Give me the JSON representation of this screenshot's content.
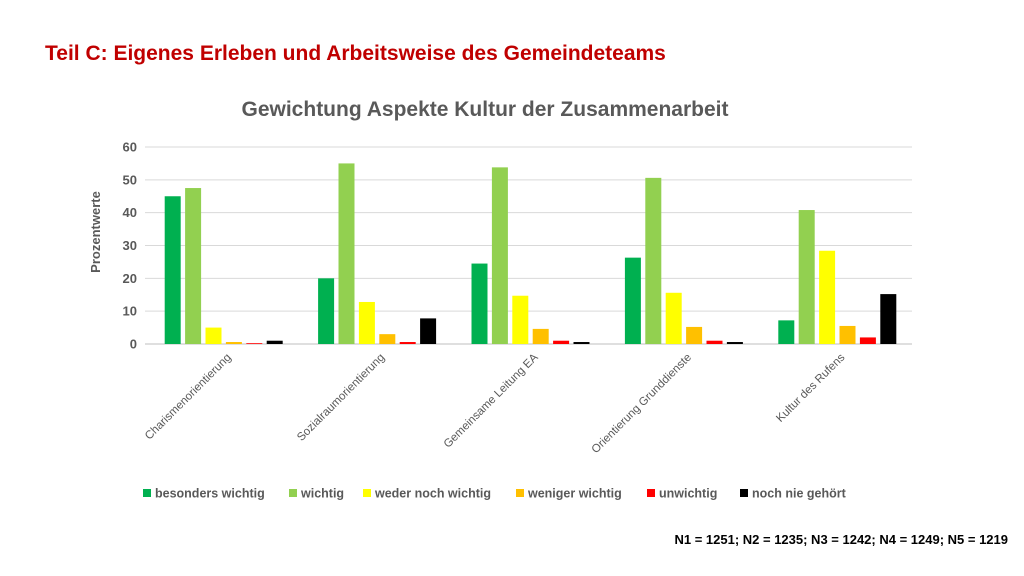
{
  "heading": "Teil C: Eigenes Erleben und Arbeitsweise des Gemeindeteams",
  "footnote": "N1 = 1251; N2 = 1235; N3 = 1242; N4 = 1249; N5 = 1219",
  "chart_data": {
    "type": "bar",
    "title": "Gewichtung Aspekte Kultur der Zusammenarbeit",
    "xlabel": "",
    "ylabel": "Prozentwerte",
    "ylim": [
      0,
      60
    ],
    "yticks": [
      0,
      10,
      20,
      30,
      40,
      50,
      60
    ],
    "grid": true,
    "legend_position": "bottom",
    "categories": [
      "Charismenorientierung",
      "Sozialraumorientierung",
      "Gemeinsame Leitung EA",
      "Orientierung Grunddienste",
      "Kultur des Rufens"
    ],
    "series": [
      {
        "name": "besonders wichtig",
        "color": "#00b050",
        "values": [
          45,
          20,
          24.5,
          26.3,
          7.2
        ]
      },
      {
        "name": "wichtig",
        "color": "#92d050",
        "values": [
          47.5,
          55,
          53.8,
          50.6,
          40.8
        ]
      },
      {
        "name": "weder noch wichtig",
        "color": "#ffff00",
        "values": [
          5,
          12.8,
          14.7,
          15.6,
          28.4
        ]
      },
      {
        "name": "weniger wichtig",
        "color": "#ffc000",
        "values": [
          0.6,
          3,
          4.6,
          5.2,
          5.5
        ]
      },
      {
        "name": "unwichtig",
        "color": "#ff0000",
        "values": [
          0.2,
          0.6,
          1,
          1,
          2
        ]
      },
      {
        "name": "noch nie gehört",
        "color": "#000000",
        "values": [
          1,
          7.8,
          0.6,
          0.6,
          15.2
        ]
      }
    ]
  }
}
